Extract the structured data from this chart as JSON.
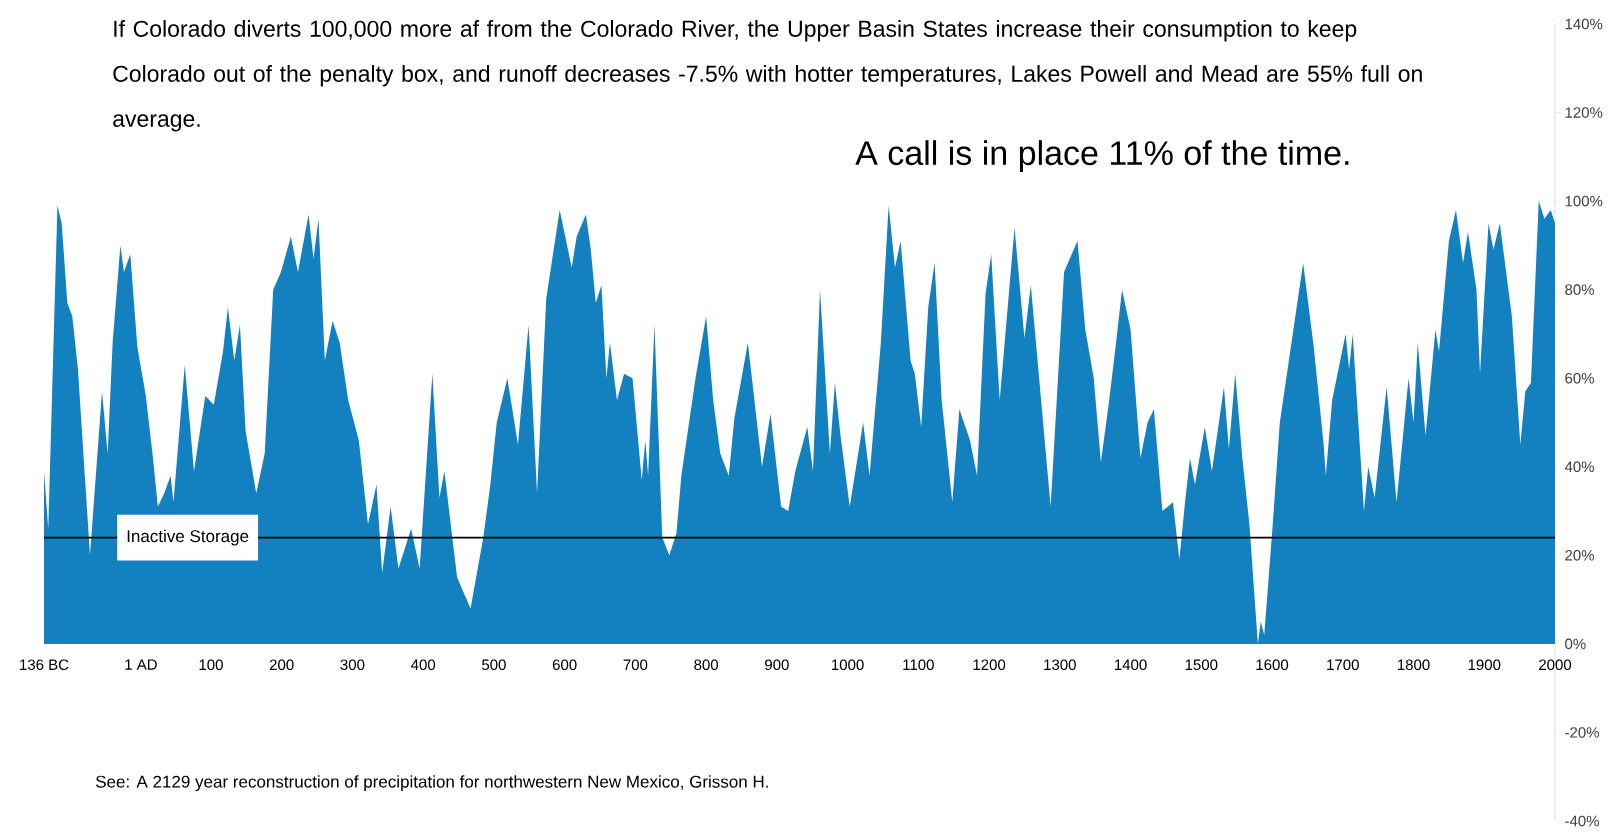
{
  "chart_data": {
    "type": "area",
    "title": "If Colorado diverts 100,000 more af from the Colorado River, the Upper Basin States increase their consumption to keep Colorado out of the penalty box, and runoff decreases -7.5% with hotter temperatures, Lakes Powell and Mead are 55% full on average.",
    "annotations": [
      "A call is in place 11% of the time.",
      "See:  A 2129 year reconstruction of precipitation for northwestern New Mexico, Grisson H."
    ],
    "x": [
      -136,
      -130,
      -117,
      -111,
      -103,
      -96,
      -88,
      -71,
      -54,
      -46,
      -39,
      -28,
      -23,
      -14,
      -4,
      8,
      18,
      25,
      34,
      43,
      47,
      63,
      76,
      92,
      104,
      117,
      124,
      133,
      141,
      149,
      164,
      176,
      188,
      199,
      213,
      223,
      238,
      245,
      252,
      261,
      272,
      282,
      294,
      309,
      322,
      334,
      342,
      354,
      365,
      383,
      395,
      413,
      423,
      430,
      448,
      467,
      485,
      495,
      504,
      519,
      534,
      549,
      561,
      574,
      593,
      610,
      617,
      630,
      637,
      644,
      652,
      659,
      664,
      674,
      684,
      696,
      709,
      714,
      718,
      727,
      738,
      748,
      758,
      765,
      785,
      800,
      810,
      820,
      832,
      840,
      859,
      879,
      891,
      906,
      916,
      926,
      943,
      951,
      961,
      975,
      982,
      990,
      1003,
      1022,
      1031,
      1047,
      1058,
      1067,
      1075,
      1089,
      1095,
      1104,
      1114,
      1123,
      1133,
      1148,
      1158,
      1173,
      1183,
      1195,
      1203,
      1215,
      1236,
      1250,
      1259,
      1287,
      1306,
      1314,
      1325,
      1336,
      1348,
      1358,
      1369,
      1378,
      1388,
      1400,
      1414,
      1424,
      1433,
      1445,
      1460,
      1469,
      1477,
      1484,
      1491,
      1505,
      1515,
      1532,
      1539,
      1548,
      1558,
      1568,
      1580,
      1584,
      1589,
      1601,
      1611,
      1632,
      1644,
      1659,
      1673,
      1676,
      1685,
      1704,
      1709,
      1714,
      1730,
      1736,
      1745,
      1762,
      1776,
      1793,
      1800,
      1806,
      1817,
      1831,
      1836,
      1850,
      1860,
      1870,
      1877,
      1889,
      1894,
      1906,
      1913,
      1922,
      1939,
      1951,
      1958,
      1966,
      1977,
      1985,
      1994,
      2000
    ],
    "series": [
      {
        "color": "#1380c0",
        "values": [
          39,
          26,
          99,
          95,
          77,
          74,
          62,
          20,
          57,
          43,
          68,
          90,
          84,
          88,
          67,
          56,
          42,
          31,
          34,
          38,
          32,
          63,
          39,
          56,
          54,
          66,
          76,
          64,
          72,
          48,
          34,
          43,
          80,
          84,
          92,
          84,
          97,
          87,
          96,
          64,
          73,
          68,
          55,
          46,
          27,
          36,
          16,
          31,
          17,
          26,
          17,
          61,
          33,
          39,
          15,
          8,
          24,
          36,
          50,
          60,
          45,
          72,
          34,
          78,
          98,
          85,
          92,
          97,
          89,
          77,
          81,
          60,
          68,
          55,
          61,
          60,
          37,
          46,
          38,
          72,
          24,
          20,
          25,
          38,
          60,
          74,
          55,
          43,
          38,
          51,
          68,
          40,
          52,
          31,
          30,
          39,
          49,
          39,
          80,
          43,
          59,
          47,
          31,
          50,
          38,
          68,
          99,
          85,
          91,
          64,
          61,
          49,
          76,
          86,
          55,
          32,
          53,
          46,
          38,
          79,
          88,
          55,
          94,
          69,
          81,
          31,
          84,
          87,
          91,
          71,
          60,
          41,
          54,
          66,
          80,
          71,
          42,
          50,
          53,
          30,
          32,
          19,
          32,
          42,
          36,
          49,
          39,
          58,
          44,
          61,
          42,
          27,
          0,
          5,
          2,
          27,
          50,
          73,
          86,
          67,
          45,
          38,
          55,
          70,
          62,
          70,
          30,
          40,
          33,
          58,
          32,
          60,
          50,
          68,
          47,
          71,
          66,
          91,
          98,
          86,
          93,
          80,
          61,
          95,
          89,
          95,
          74,
          45,
          57,
          59,
          100,
          96,
          98,
          95
        ]
      }
    ],
    "xlim": [
      -136,
      2000
    ],
    "xticks": [
      {
        "value": -136,
        "label": "136 BC"
      },
      {
        "value": 1,
        "label": "1 AD"
      },
      100,
      200,
      300,
      400,
      500,
      600,
      700,
      800,
      900,
      1000,
      1100,
      1200,
      1300,
      1400,
      1500,
      1600,
      1700,
      1800,
      1900,
      2000
    ],
    "ylim": [
      -40,
      140
    ],
    "yticks": [
      {
        "value": -40,
        "label": "-40%"
      },
      {
        "value": -20,
        "label": "-20%"
      },
      {
        "value": 0,
        "label": "0%"
      },
      {
        "value": 20,
        "label": "20%"
      },
      {
        "value": 40,
        "label": "40%"
      },
      {
        "value": 60,
        "label": "60%"
      },
      {
        "value": 80,
        "label": "80%"
      },
      {
        "value": 100,
        "label": "100%"
      },
      {
        "value": 120,
        "label": "120%"
      },
      {
        "value": 140,
        "label": "140%"
      }
    ],
    "ref_lines": [
      {
        "axis": "y",
        "value": 24,
        "label": "Inactive Storage",
        "color": "#000000"
      }
    ]
  }
}
